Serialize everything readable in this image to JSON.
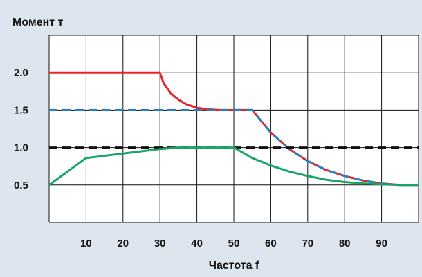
{
  "chart_data": {
    "type": "line",
    "ylabel": "Момент т",
    "xlabel": "Частота f",
    "x_ticks": [
      10,
      20,
      30,
      40,
      50,
      60,
      70,
      80,
      90
    ],
    "x_tick_labels": [
      "10",
      "20",
      "30",
      "40",
      "50",
      "60",
      "70",
      "80",
      "90"
    ],
    "y_ticks": [
      0.5,
      1.0,
      1.5,
      2.0
    ],
    "y_tick_labels": [
      "0.5",
      "1.0",
      "1.5",
      "2.0"
    ],
    "xlim": [
      0,
      100
    ],
    "ylim": [
      0,
      2.5
    ],
    "grid": true,
    "series": [
      {
        "style": "solid",
        "color": "#e8232a",
        "x": [
          0,
          30,
          31,
          33,
          35,
          37,
          40,
          43,
          46,
          50,
          55,
          60,
          65,
          70,
          75,
          80,
          85,
          90,
          95,
          100
        ],
        "y": [
          2.0,
          2.0,
          1.86,
          1.72,
          1.64,
          1.58,
          1.53,
          1.51,
          1.5,
          1.5,
          1.5,
          1.2,
          0.98,
          0.82,
          0.7,
          0.62,
          0.56,
          0.52,
          0.5,
          0.5
        ]
      },
      {
        "style": "dashed",
        "color": "#2b7fc1",
        "x": [
          0,
          55,
          60,
          65,
          70,
          75,
          80,
          85,
          90,
          95,
          100
        ],
        "y": [
          1.5,
          1.5,
          1.2,
          0.98,
          0.82,
          0.7,
          0.62,
          0.56,
          0.52,
          0.5,
          0.5
        ]
      },
      {
        "style": "dashed",
        "color": "#111111",
        "x": [
          0,
          100
        ],
        "y": [
          1.0,
          1.0
        ]
      },
      {
        "style": "solid",
        "color": "#1aa564",
        "x": [
          0,
          10,
          20,
          30,
          35,
          40,
          45,
          50,
          55,
          60,
          65,
          70,
          75,
          80,
          85,
          90,
          95,
          100
        ],
        "y": [
          0.5,
          0.86,
          0.92,
          0.98,
          1.0,
          1.0,
          1.0,
          1.0,
          0.86,
          0.76,
          0.68,
          0.62,
          0.57,
          0.54,
          0.52,
          0.51,
          0.5,
          0.5
        ]
      }
    ]
  }
}
